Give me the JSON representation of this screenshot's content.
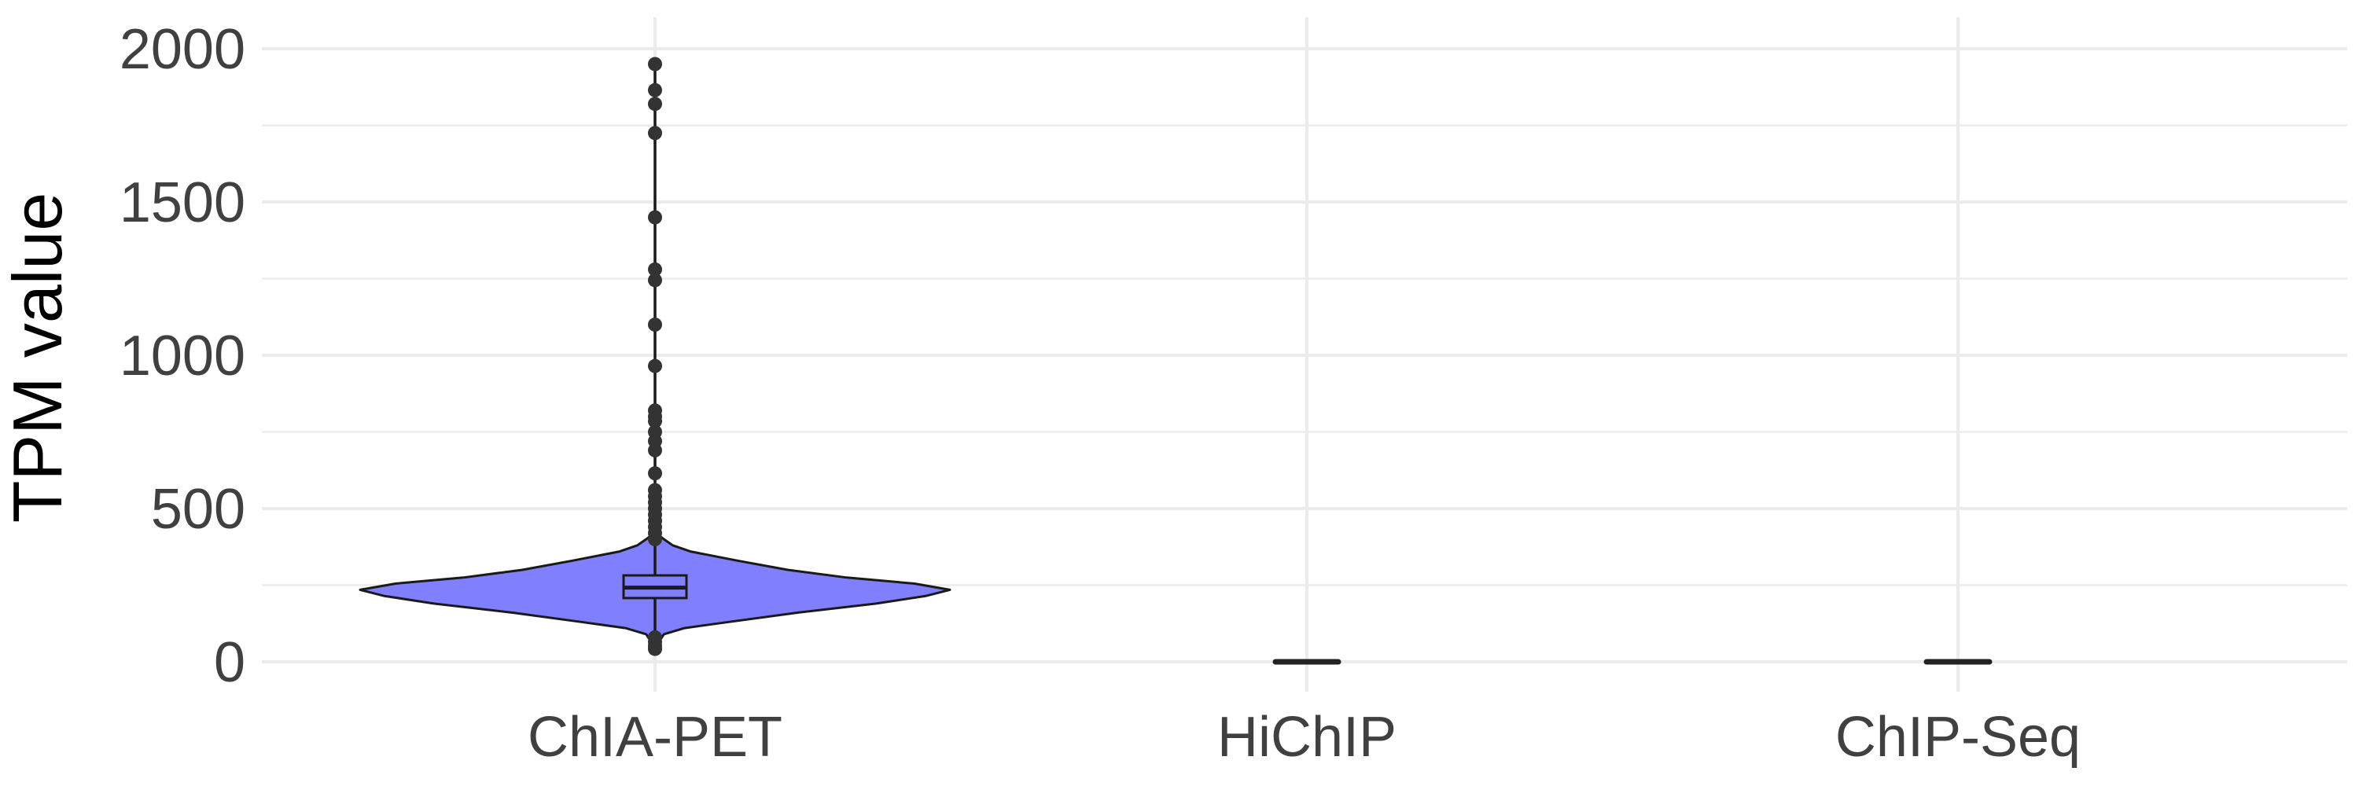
{
  "chart_data": {
    "type": "violin",
    "title": "",
    "xlabel": "",
    "ylabel": "TPM value",
    "categories": [
      "ChIA-PET",
      "HiChIP",
      "ChIP-Seq"
    ],
    "ylim": [
      -20,
      2050
    ],
    "yticks": [
      0,
      500,
      1000,
      1500,
      2000
    ],
    "ytick_labels": [
      "0",
      "500",
      "1000",
      "1500",
      "2000"
    ],
    "grid": true,
    "legend": "none",
    "colors": {
      "fill": "#8080ff",
      "stroke": "#1a1a1a",
      "grid": "#ebebeb",
      "tick_text": "#404040"
    },
    "violin": {
      "y": [
        40,
        60,
        90,
        110,
        130,
        160,
        190,
        215,
        235,
        255,
        275,
        300,
        330,
        360,
        380,
        400,
        415,
        430
      ],
      "half_width": [
        0.0,
        0.01,
        0.03,
        0.1,
        0.25,
        0.48,
        0.75,
        0.92,
        1.0,
        0.88,
        0.65,
        0.45,
        0.28,
        0.12,
        0.06,
        0.03,
        0.01,
        0.0
      ]
    },
    "series": [
      {
        "category": "ChIA-PET",
        "box": {
          "q1": 208,
          "median": 242,
          "q3": 282,
          "whisker_low": 40,
          "whisker_high": 1950
        },
        "outliers": [
          1950,
          1865,
          1820,
          1725,
          1450,
          1280,
          1245,
          1100,
          965,
          820,
          800,
          785,
          750,
          720,
          690,
          615,
          560,
          540,
          520,
          500,
          480,
          460,
          440,
          420,
          400,
          80,
          65,
          52,
          42
        ]
      },
      {
        "category": "HiChIP",
        "value": 0
      },
      {
        "category": "ChIP-Seq",
        "value": 0
      }
    ]
  }
}
